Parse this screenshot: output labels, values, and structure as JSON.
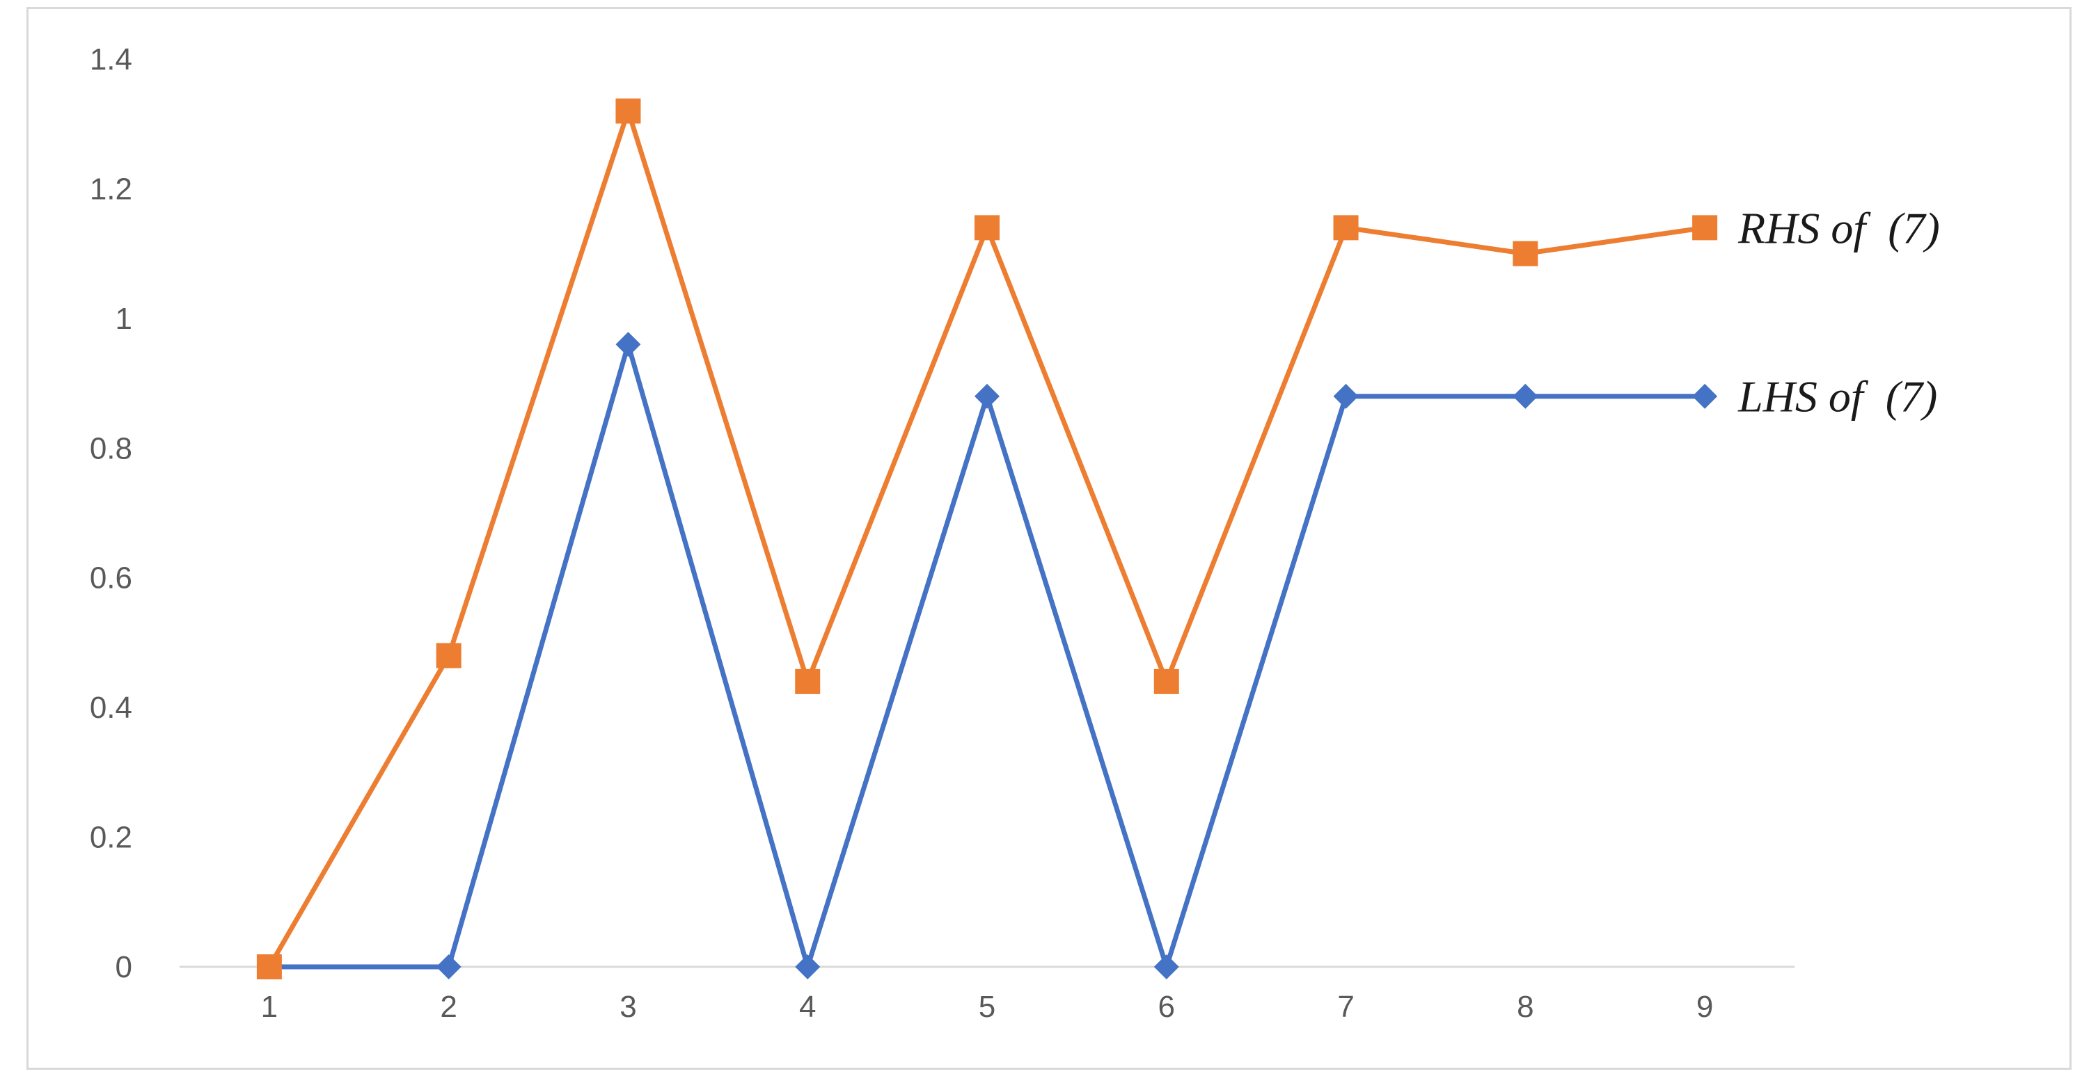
{
  "chart_data": {
    "type": "line",
    "title": "",
    "xlabel": "",
    "ylabel": "",
    "categories": [
      "1",
      "2",
      "3",
      "4",
      "5",
      "6",
      "7",
      "8",
      "9"
    ],
    "ylim": [
      0,
      1.4
    ],
    "yticks": [
      "0",
      "0.2",
      "0.4",
      "0.6",
      "0.8",
      "1",
      "1.2",
      "1.4"
    ],
    "grid": false,
    "legend": "inline labels at right end of each series",
    "series": [
      {
        "name": "RHS of  (7)",
        "color": "#ed7d31",
        "marker": "square",
        "values": [
          0,
          0.48,
          1.32,
          0.44,
          1.14,
          0.44,
          1.14,
          1.1,
          1.14
        ]
      },
      {
        "name": "LHS of  (7)",
        "color": "#4472c4",
        "marker": "diamond",
        "values": [
          0,
          0,
          0.96,
          0,
          0.88,
          0,
          0.88,
          0.88,
          0.88
        ]
      }
    ]
  }
}
